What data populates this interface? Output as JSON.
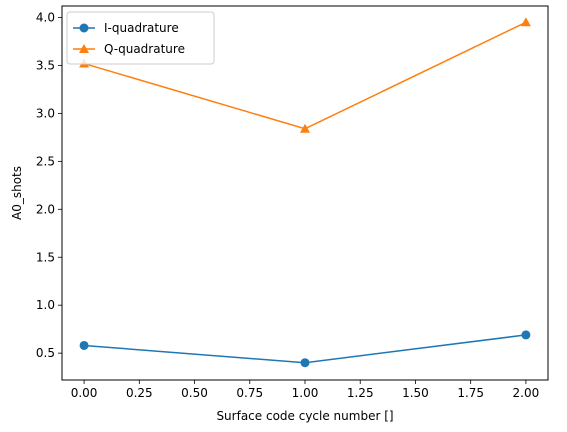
{
  "chart_data": {
    "type": "line",
    "title": "",
    "xlabel": "Surface code cycle number []",
    "ylabel": "A0_shots",
    "x": [
      0,
      1,
      2
    ],
    "xlim": [
      -0.1,
      2.1
    ],
    "ylim": [
      0.22,
      4.12
    ],
    "xticks": [
      "0.00",
      "0.25",
      "0.50",
      "0.75",
      "1.00",
      "1.25",
      "1.50",
      "1.75",
      "2.00"
    ],
    "xtick_values": [
      0,
      0.25,
      0.5,
      0.75,
      1.0,
      1.25,
      1.5,
      1.75,
      2.0
    ],
    "yticks": [
      "0.5",
      "1.0",
      "1.5",
      "2.0",
      "2.5",
      "3.0",
      "3.5",
      "4.0"
    ],
    "ytick_values": [
      0.5,
      1.0,
      1.5,
      2.0,
      2.5,
      3.0,
      3.5,
      4.0
    ],
    "grid": false,
    "legend_position": "top-left",
    "series": [
      {
        "name": "I-quadrature",
        "values": [
          0.58,
          0.4,
          0.69
        ],
        "color": "#1f77b4",
        "marker": "circle"
      },
      {
        "name": "Q-quadrature",
        "values": [
          3.52,
          2.84,
          3.95
        ],
        "color": "#ff7f0e",
        "marker": "triangle"
      }
    ]
  }
}
